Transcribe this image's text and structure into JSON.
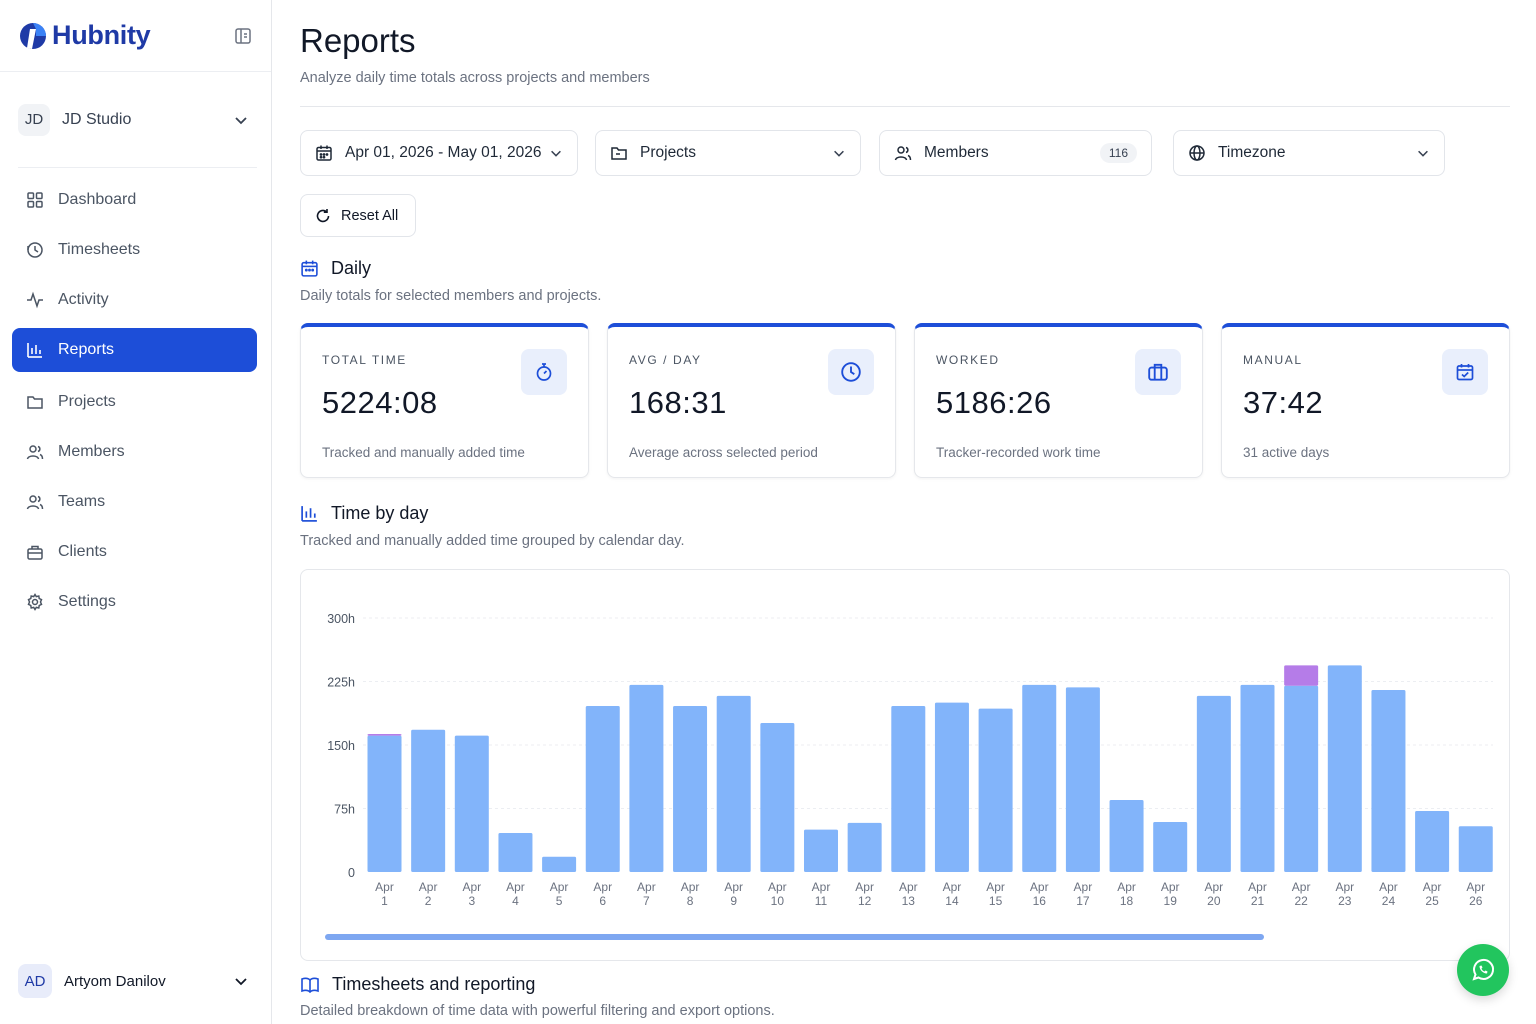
{
  "brand": {
    "name": "Hubnity"
  },
  "workspace": {
    "initials": "JD",
    "name": "JD Studio"
  },
  "nav": [
    {
      "label": "Dashboard",
      "icon": "grid-icon",
      "active": false
    },
    {
      "label": "Timesheets",
      "icon": "history-icon",
      "active": false
    },
    {
      "label": "Activity",
      "icon": "activity-icon",
      "active": false
    },
    {
      "label": "Reports",
      "icon": "bar-chart-icon",
      "active": true
    },
    {
      "label": "Projects",
      "icon": "folder-icon",
      "active": false
    },
    {
      "label": "Members",
      "icon": "users-icon",
      "active": false
    },
    {
      "label": "Teams",
      "icon": "team-icon",
      "active": false
    },
    {
      "label": "Clients",
      "icon": "briefcase-icon",
      "active": false
    },
    {
      "label": "Settings",
      "icon": "gear-icon",
      "active": false
    }
  ],
  "user": {
    "initials": "AD",
    "name": "Artyom Danilov"
  },
  "page": {
    "title": "Reports",
    "subtitle": "Analyze daily time totals across projects and members"
  },
  "filters": {
    "date_range": "Apr 01, 2026 - May 01, 2026",
    "projects": "Projects",
    "members": "Members",
    "members_count": "116",
    "timezone": "Timezone",
    "reset": "Reset All"
  },
  "daily": {
    "title": "Daily",
    "subtitle": "Daily totals for selected members and projects."
  },
  "cards": [
    {
      "label": "TOTAL TIME",
      "value": "5224:08",
      "desc": "Tracked and manually added time",
      "icon": "stopwatch-icon"
    },
    {
      "label": "AVG / DAY",
      "value": "168:31",
      "desc": "Average across selected period",
      "icon": "clock-icon"
    },
    {
      "label": "WORKED",
      "value": "5186:26",
      "desc": "Tracker-recorded work time",
      "icon": "briefcase-icon"
    },
    {
      "label": "MANUAL",
      "value": "37:42",
      "desc": "31 active days",
      "icon": "calendar-check-icon"
    }
  ],
  "time_by_day": {
    "title": "Time by day",
    "subtitle": "Tracked and manually added time grouped by calendar day."
  },
  "timesheets": {
    "title": "Timesheets and reporting",
    "subtitle": "Detailed breakdown of time data with powerful filtering and export options."
  },
  "colors": {
    "accent": "#1d4ed8",
    "bar_tracked": "#82b4fa",
    "bar_manual": "#b57ce8",
    "fab": "#22c55e"
  },
  "chart_data": {
    "type": "bar",
    "stacked": true,
    "ylim": [
      0,
      300
    ],
    "yticks": [
      "0",
      "75h",
      "150h",
      "225h",
      "300h"
    ],
    "ytick_values": [
      0,
      75,
      150,
      225,
      300
    ],
    "categories": [
      [
        "Apr",
        "1"
      ],
      [
        "Apr",
        "2"
      ],
      [
        "Apr",
        "3"
      ],
      [
        "Apr",
        "4"
      ],
      [
        "Apr",
        "5"
      ],
      [
        "Apr",
        "6"
      ],
      [
        "Apr",
        "7"
      ],
      [
        "Apr",
        "8"
      ],
      [
        "Apr",
        "9"
      ],
      [
        "Apr",
        "10"
      ],
      [
        "Apr",
        "11"
      ],
      [
        "Apr",
        "12"
      ],
      [
        "Apr",
        "13"
      ],
      [
        "Apr",
        "14"
      ],
      [
        "Apr",
        "15"
      ],
      [
        "Apr",
        "16"
      ],
      [
        "Apr",
        "17"
      ],
      [
        "Apr",
        "18"
      ],
      [
        "Apr",
        "19"
      ],
      [
        "Apr",
        "20"
      ],
      [
        "Apr",
        "21"
      ],
      [
        "Apr",
        "22"
      ],
      [
        "Apr",
        "23"
      ],
      [
        "Apr",
        "24"
      ],
      [
        "Apr",
        "25"
      ],
      [
        "Apr",
        "26"
      ]
    ],
    "series": [
      {
        "key": "tracked",
        "values": [
          161,
          168,
          161,
          46,
          18,
          196,
          221,
          196,
          208,
          176,
          50,
          58,
          196,
          200,
          193,
          221,
          218,
          85,
          59,
          208,
          221,
          220,
          244,
          215,
          72,
          54
        ]
      },
      {
        "key": "manual",
        "values": [
          2,
          0,
          0,
          0,
          0,
          0,
          0,
          0,
          0,
          0,
          0,
          0,
          0,
          0,
          0,
          0,
          0,
          0,
          0,
          0,
          0,
          24,
          0,
          0,
          0,
          0
        ]
      }
    ],
    "grid": true,
    "scrollbar": true
  }
}
